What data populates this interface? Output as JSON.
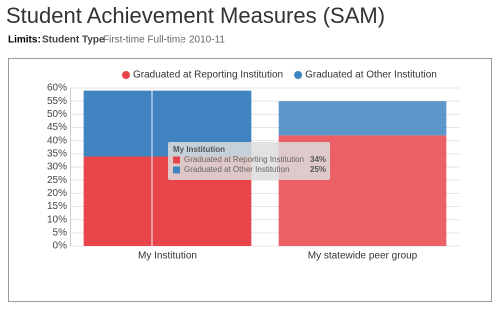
{
  "header": {
    "title": "Student Achievement Measures (SAM)",
    "limits": {
      "label": "Limits:",
      "field": "Student Type",
      "value": "First-time Full-time",
      "year": "2010-11"
    }
  },
  "chart_data": {
    "type": "stacked-bar",
    "categories": [
      "My Institution",
      "My statewide peer group"
    ],
    "series": [
      {
        "name": "Graduated at Reporting Institution",
        "color": "#e8454b",
        "values": [
          34,
          42
        ],
        "value_labels": [
          "34%",
          null
        ]
      },
      {
        "name": "Graduated at Other Institution",
        "color": "#3f84c1",
        "values": [
          25,
          13
        ],
        "value_labels": [
          "25%",
          null
        ]
      }
    ],
    "ylim": [
      0,
      60
    ],
    "yticks": [
      {
        "value": 0,
        "label": "0%"
      },
      {
        "value": 5,
        "label": "5%"
      },
      {
        "value": 10,
        "label": "10%"
      },
      {
        "value": 15,
        "label": "15%"
      },
      {
        "value": 20,
        "label": "20%"
      },
      {
        "value": 25,
        "label": "25%"
      },
      {
        "value": 30,
        "label": "30%"
      },
      {
        "value": 35,
        "label": "35%"
      },
      {
        "value": 40,
        "label": "40%"
      },
      {
        "value": 45,
        "label": "45%"
      },
      {
        "value": 50,
        "label": "50%"
      },
      {
        "value": 55,
        "label": "55%"
      },
      {
        "value": 60,
        "label": "60%"
      }
    ],
    "grid": true,
    "legend": "top"
  }
}
